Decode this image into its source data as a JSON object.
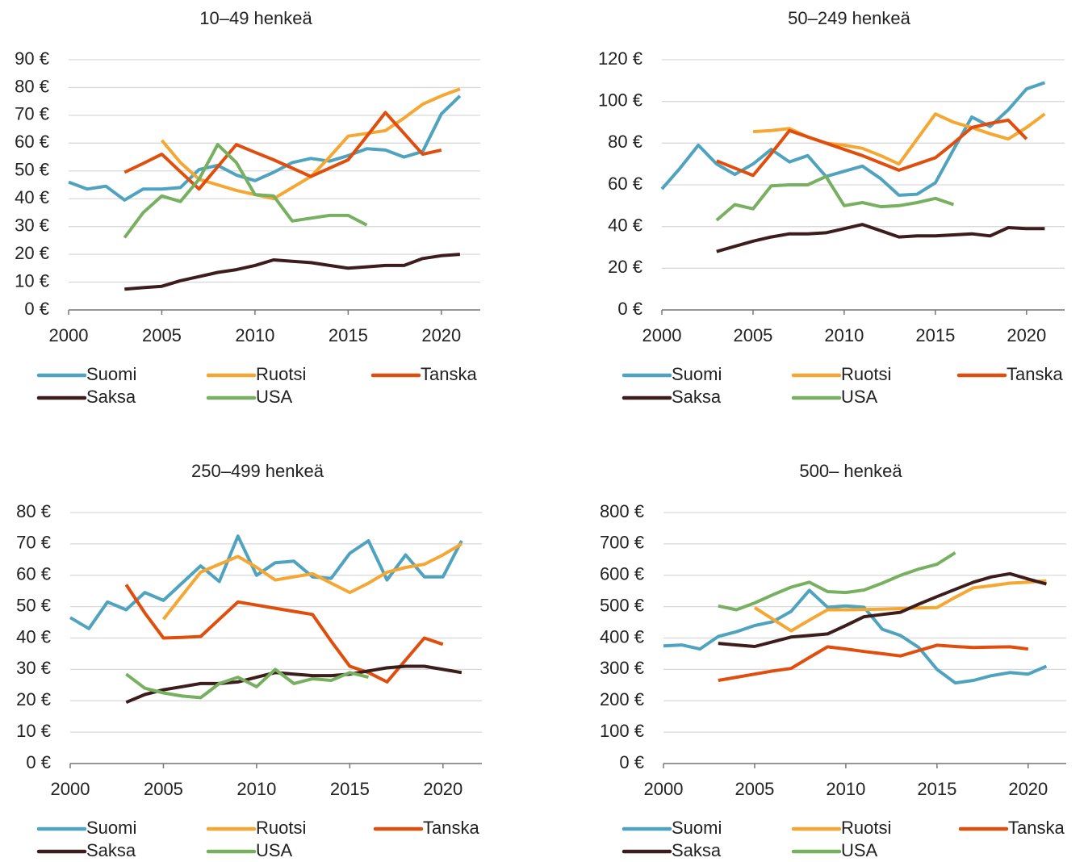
{
  "chart_data": [
    {
      "type": "line",
      "title": "10–49 henkeä",
      "grid": true,
      "legend": "bottom",
      "x": [
        2000,
        2001,
        2002,
        2003,
        2004,
        2005,
        2006,
        2007,
        2008,
        2009,
        2010,
        2011,
        2012,
        2013,
        2014,
        2015,
        2016,
        2017,
        2018,
        2019,
        2020,
        2021
      ],
      "xlim": [
        2000,
        2022
      ],
      "xticks": [
        2000,
        2005,
        2010,
        2015,
        2020
      ],
      "ylim": [
        0,
        90
      ],
      "yticks": [
        {
          "value": 0,
          "label": "0 €"
        },
        {
          "value": 10,
          "label": "10 €"
        },
        {
          "value": 20,
          "label": "20 €"
        },
        {
          "value": 30,
          "label": "30 €"
        },
        {
          "value": 40,
          "label": "40 €"
        },
        {
          "value": 50,
          "label": "50 €"
        },
        {
          "value": 60,
          "label": "60 €"
        },
        {
          "value": 70,
          "label": "70 €"
        },
        {
          "value": 80,
          "label": "80 €"
        },
        {
          "value": 90,
          "label": "90 €"
        }
      ],
      "series": [
        {
          "name": "Suomi",
          "color": "#4fa3bf",
          "values": [
            46,
            43.5,
            44.5,
            39.5,
            43.5,
            43.5,
            44,
            50.5,
            52,
            48.5,
            46.5,
            49.5,
            53,
            54.5,
            53.5,
            55.5,
            58,
            57.5,
            55,
            57,
            70.5,
            77
          ]
        },
        {
          "name": "Ruotsi",
          "color": "#f5a733",
          "values": [
            null,
            null,
            null,
            null,
            null,
            61,
            53,
            47,
            45,
            43,
            41.5,
            40,
            44,
            48,
            55,
            62.5,
            63.5,
            64.5,
            69,
            74,
            77,
            79.5
          ]
        },
        {
          "name": "Tanska",
          "color": "#e04e0e",
          "values": [
            null,
            null,
            null,
            49.5,
            52.7,
            56,
            49.7,
            43.5,
            51.5,
            59.5,
            56.7,
            54,
            51,
            48,
            51,
            54,
            62.5,
            71,
            63.5,
            56,
            57.5,
            null
          ]
        },
        {
          "name": "Saksa",
          "color": "#3d1c1c",
          "values": [
            null,
            null,
            null,
            7.5,
            8,
            8.5,
            10.5,
            12,
            13.5,
            14.5,
            16,
            18,
            17.5,
            17,
            16,
            15,
            15.5,
            16,
            16,
            18.5,
            19.5,
            20
          ]
        },
        {
          "name": "USA",
          "color": "#77b060",
          "values": [
            null,
            null,
            null,
            26,
            35,
            41,
            39,
            47,
            59.5,
            53,
            41.5,
            41,
            32,
            33,
            34,
            34,
            30.5,
            null,
            null,
            null,
            null,
            null
          ]
        }
      ]
    },
    {
      "type": "line",
      "title": "50–249 henkeä",
      "grid": true,
      "legend": "bottom",
      "x": [
        2000,
        2001,
        2002,
        2003,
        2004,
        2005,
        2006,
        2007,
        2008,
        2009,
        2010,
        2011,
        2012,
        2013,
        2014,
        2015,
        2016,
        2017,
        2018,
        2019,
        2020,
        2021
      ],
      "xlim": [
        2000,
        2022
      ],
      "xticks": [
        2000,
        2005,
        2010,
        2015,
        2020
      ],
      "ylim": [
        0,
        120
      ],
      "yticks": [
        {
          "value": 0,
          "label": "0 €"
        },
        {
          "value": 20,
          "label": "20 €"
        },
        {
          "value": 40,
          "label": "40 €"
        },
        {
          "value": 60,
          "label": "60 €"
        },
        {
          "value": 80,
          "label": "80 €"
        },
        {
          "value": 100,
          "label": "100 €"
        },
        {
          "value": 120,
          "label": "120 €"
        }
      ],
      "series": [
        {
          "name": "Suomi",
          "color": "#4fa3bf",
          "values": [
            58,
            68,
            79,
            70,
            65,
            70,
            77,
            71,
            74,
            64,
            66.5,
            69,
            63,
            55,
            55.5,
            61,
            77,
            92.5,
            88,
            96,
            106,
            109
          ]
        },
        {
          "name": "Ruotsi",
          "color": "#f5a733",
          "values": [
            null,
            null,
            null,
            null,
            null,
            85.5,
            86,
            87,
            83,
            80,
            79,
            77.5,
            74,
            70,
            82,
            94,
            90,
            87.5,
            84.5,
            82,
            87.5,
            94
          ]
        },
        {
          "name": "Tanska",
          "color": "#e04e0e",
          "values": [
            null,
            null,
            null,
            71.5,
            68,
            64.5,
            75,
            86,
            83,
            80,
            77,
            74,
            70.5,
            67,
            70,
            73,
            80,
            87.5,
            89.5,
            91,
            82,
            null
          ]
        },
        {
          "name": "Saksa",
          "color": "#3d1c1c",
          "values": [
            null,
            null,
            null,
            28,
            30.5,
            33,
            35,
            36.5,
            36.5,
            37,
            39,
            41,
            38,
            35,
            35.5,
            35.5,
            36,
            36.5,
            35.5,
            39.5,
            39,
            39
          ]
        },
        {
          "name": "USA",
          "color": "#77b060",
          "values": [
            null,
            null,
            null,
            43,
            50.5,
            48.5,
            59.5,
            60,
            60,
            64,
            50,
            51.5,
            49.5,
            50,
            51.5,
            53.5,
            50.5,
            null,
            null,
            null,
            null,
            null
          ]
        }
      ]
    },
    {
      "type": "line",
      "title": "250–499 henkeä",
      "grid": true,
      "legend": "bottom",
      "x": [
        2000,
        2001,
        2002,
        2003,
        2004,
        2005,
        2006,
        2007,
        2008,
        2009,
        2010,
        2011,
        2012,
        2013,
        2014,
        2015,
        2016,
        2017,
        2018,
        2019,
        2020,
        2021
      ],
      "xlim": [
        2000,
        2022
      ],
      "xticks": [
        2000,
        2005,
        2010,
        2015,
        2020
      ],
      "ylim": [
        0,
        80
      ],
      "yticks": [
        {
          "value": 0,
          "label": "0 €"
        },
        {
          "value": 10,
          "label": "10 €"
        },
        {
          "value": 20,
          "label": "20 €"
        },
        {
          "value": 30,
          "label": "30 €"
        },
        {
          "value": 40,
          "label": "40 €"
        },
        {
          "value": 50,
          "label": "50 €"
        },
        {
          "value": 60,
          "label": "60 €"
        },
        {
          "value": 70,
          "label": "70 €"
        },
        {
          "value": 80,
          "label": "80 €"
        }
      ],
      "series": [
        {
          "name": "Suomi",
          "color": "#4fa3bf",
          "values": [
            46.5,
            43,
            51.5,
            49,
            54.5,
            52,
            57.5,
            63,
            58,
            72.5,
            60,
            64,
            64.5,
            59.5,
            59,
            67,
            71,
            58.5,
            66.5,
            59.5,
            59.5,
            71
          ]
        },
        {
          "name": "Ruotsi",
          "color": "#f5a733",
          "values": [
            null,
            null,
            null,
            null,
            null,
            46,
            53.5,
            61,
            63.5,
            66,
            62.5,
            58.5,
            59.5,
            60.5,
            57.5,
            54.5,
            57.5,
            61,
            62.5,
            63.5,
            66.5,
            70
          ]
        },
        {
          "name": "Tanska",
          "color": "#e04e0e",
          "values": [
            null,
            null,
            null,
            57,
            48,
            40,
            40.2,
            40.5,
            46,
            51.5,
            50.5,
            49.5,
            48.5,
            47.5,
            39,
            31,
            29,
            26,
            33,
            40,
            38,
            null
          ]
        },
        {
          "name": "Saksa",
          "color": "#3d1c1c",
          "values": [
            null,
            null,
            null,
            19.5,
            22,
            23.5,
            24.5,
            25.5,
            25.5,
            26,
            27.5,
            29,
            28.5,
            28,
            28,
            28.5,
            29.5,
            30.5,
            31,
            31,
            30,
            29
          ]
        },
        {
          "name": "USA",
          "color": "#77b060",
          "values": [
            null,
            null,
            null,
            28.5,
            24,
            22.5,
            21.5,
            21,
            25.5,
            27.5,
            24.5,
            30,
            25.5,
            27,
            26.5,
            29,
            27.5,
            null,
            null,
            null,
            null,
            null
          ]
        }
      ]
    },
    {
      "type": "line",
      "title": "500– henkeä",
      "grid": true,
      "legend": "bottom",
      "x": [
        2000,
        2001,
        2002,
        2003,
        2004,
        2005,
        2006,
        2007,
        2008,
        2009,
        2010,
        2011,
        2012,
        2013,
        2014,
        2015,
        2016,
        2017,
        2018,
        2019,
        2020,
        2021
      ],
      "xlim": [
        2000,
        2022
      ],
      "xticks": [
        2000,
        2005,
        2010,
        2015,
        2020
      ],
      "ylim": [
        0,
        800
      ],
      "yticks": [
        {
          "value": 0,
          "label": "0 €"
        },
        {
          "value": 100,
          "label": "100 €"
        },
        {
          "value": 200,
          "label": "200 €"
        },
        {
          "value": 300,
          "label": "300 €"
        },
        {
          "value": 400,
          "label": "400 €"
        },
        {
          "value": 500,
          "label": "500 €"
        },
        {
          "value": 600,
          "label": "600 €"
        },
        {
          "value": 700,
          "label": "700 €"
        },
        {
          "value": 800,
          "label": "800 €"
        }
      ],
      "series": [
        {
          "name": "Suomi",
          "color": "#4fa3bf",
          "values": [
            375,
            378,
            365,
            405,
            420,
            440,
            452,
            485,
            552,
            498,
            502,
            498,
            428,
            408,
            370,
            300,
            257,
            265,
            280,
            290,
            285,
            310
          ]
        },
        {
          "name": "Ruotsi",
          "color": "#f5a733",
          "values": [
            null,
            null,
            null,
            null,
            null,
            497,
            460,
            423,
            457,
            490,
            490,
            491,
            492,
            494,
            496,
            497,
            530,
            560,
            567,
            575,
            578,
            582
          ]
        },
        {
          "name": "Tanska",
          "color": "#e04e0e",
          "values": [
            null,
            null,
            null,
            265,
            275,
            285,
            295,
            303,
            338,
            372,
            365,
            357,
            350,
            343,
            360,
            377,
            373,
            370,
            371,
            372,
            365,
            null
          ]
        },
        {
          "name": "Saksa",
          "color": "#3d1c1c",
          "values": [
            null,
            null,
            null,
            383,
            378,
            373,
            388,
            403,
            408,
            413,
            440,
            468,
            475,
            482,
            508,
            532,
            555,
            578,
            595,
            605,
            588,
            572
          ]
        },
        {
          "name": "USA",
          "color": "#77b060",
          "values": [
            null,
            null,
            null,
            502,
            490,
            512,
            538,
            562,
            578,
            548,
            545,
            553,
            575,
            600,
            620,
            635,
            672,
            null,
            null,
            null,
            null,
            null
          ]
        }
      ]
    }
  ]
}
